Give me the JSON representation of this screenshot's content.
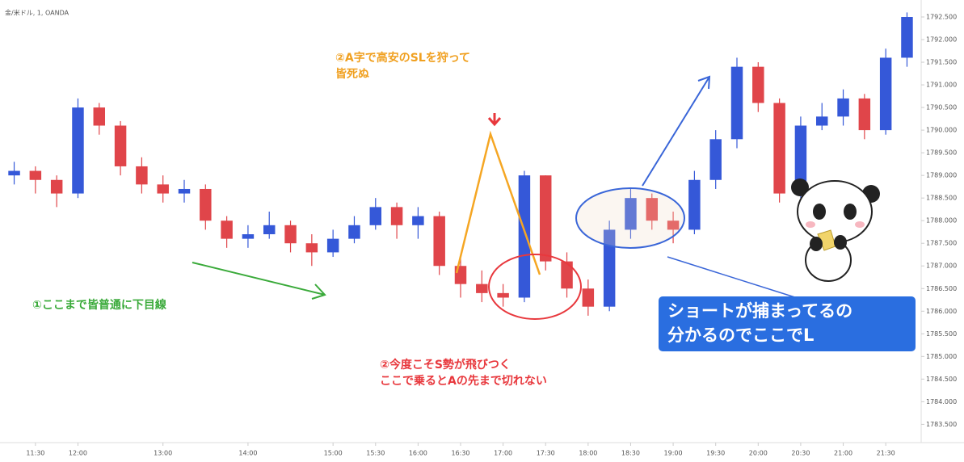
{
  "chart_data": {
    "type": "candlestick",
    "header": "金/米ドル, 1, OANDA",
    "x": [
      "11:15",
      "11:30",
      "11:45",
      "12:00",
      "12:15",
      "12:30",
      "12:45",
      "13:00",
      "13:15",
      "13:30",
      "13:45",
      "14:00",
      "14:15",
      "14:30",
      "14:45",
      "15:00",
      "15:15",
      "15:30",
      "15:45",
      "16:00",
      "16:15",
      "16:30",
      "16:45",
      "17:00",
      "17:15",
      "17:30",
      "17:45",
      "18:00",
      "18:15",
      "18:30",
      "18:45",
      "19:00",
      "19:15",
      "19:30",
      "19:45",
      "20:00",
      "20:15",
      "20:30",
      "20:45",
      "21:00",
      "21:15",
      "21:30",
      "21:45"
    ],
    "open": [
      1789.0,
      1789.1,
      1788.9,
      1788.6,
      1790.5,
      1790.1,
      1789.2,
      1788.8,
      1788.6,
      1788.7,
      1788.0,
      1787.6,
      1787.7,
      1787.9,
      1787.5,
      1787.3,
      1787.6,
      1787.9,
      1788.3,
      1787.9,
      1788.1,
      1787.0,
      1786.6,
      1786.4,
      1786.3,
      1789.0,
      1787.1,
      1786.5,
      1786.1,
      1787.8,
      1788.5,
      1788.0,
      1787.8,
      1788.9,
      1789.8,
      1791.4,
      1790.6,
      1788.6,
      1790.1,
      1790.3,
      1790.7,
      1790.0,
      1791.6
    ],
    "high": [
      1789.3,
      1789.2,
      1789.0,
      1790.7,
      1790.6,
      1790.2,
      1789.4,
      1789.0,
      1788.9,
      1788.8,
      1788.1,
      1787.9,
      1788.2,
      1788.0,
      1787.7,
      1787.8,
      1788.1,
      1788.5,
      1788.4,
      1788.3,
      1788.2,
      1787.2,
      1786.9,
      1786.6,
      1789.1,
      1789.0,
      1787.3,
      1786.7,
      1788.0,
      1788.7,
      1788.6,
      1788.2,
      1789.1,
      1790.0,
      1791.6,
      1791.5,
      1790.7,
      1790.3,
      1790.6,
      1790.9,
      1790.8,
      1791.8,
      1792.6
    ],
    "low": [
      1788.8,
      1788.6,
      1788.3,
      1788.5,
      1789.9,
      1789.0,
      1788.6,
      1788.4,
      1788.4,
      1787.8,
      1787.4,
      1787.4,
      1787.6,
      1787.3,
      1787.0,
      1787.2,
      1787.5,
      1787.8,
      1787.6,
      1787.6,
      1786.8,
      1786.3,
      1786.2,
      1786.1,
      1786.2,
      1786.9,
      1786.3,
      1785.9,
      1786.0,
      1787.6,
      1787.8,
      1787.5,
      1787.7,
      1788.7,
      1789.6,
      1790.4,
      1788.4,
      1788.5,
      1790.0,
      1790.1,
      1789.8,
      1789.9,
      1791.4
    ],
    "close": [
      1789.1,
      1788.9,
      1788.6,
      1790.5,
      1790.1,
      1789.2,
      1788.8,
      1788.6,
      1788.7,
      1788.0,
      1787.6,
      1787.7,
      1787.9,
      1787.5,
      1787.3,
      1787.6,
      1787.9,
      1788.3,
      1787.9,
      1788.1,
      1787.0,
      1786.6,
      1786.4,
      1786.3,
      1789.0,
      1787.1,
      1786.5,
      1786.1,
      1787.8,
      1788.5,
      1788.0,
      1787.8,
      1788.9,
      1789.8,
      1791.4,
      1790.6,
      1788.6,
      1790.1,
      1790.3,
      1790.7,
      1790.0,
      1791.6,
      1792.5
    ],
    "up_color": "#3558d8",
    "down_color": "#e0454a",
    "xlim": [
      "11:05",
      "21:55"
    ],
    "xticks": [
      "11:30",
      "12:00",
      "13:00",
      "14:00",
      "15:00",
      "15:30",
      "16:00",
      "16:30",
      "17:00",
      "17:30",
      "18:00",
      "18:30",
      "19:00",
      "19:30",
      "20:00",
      "20:30",
      "21:00",
      "21:30"
    ],
    "ylim": [
      1783.15,
      1792.75
    ],
    "yticks": [
      {
        "value": 1783.5,
        "label": "1783.500"
      },
      {
        "value": 1784,
        "label": "1784.000"
      },
      {
        "value": 1784.5,
        "label": "1784.500"
      },
      {
        "value": 1785,
        "label": "1785.000"
      },
      {
        "value": 1785.5,
        "label": "1785.500"
      },
      {
        "value": 1786,
        "label": "1786.000"
      },
      {
        "value": 1786.5,
        "label": "1786.500"
      },
      {
        "value": 1787,
        "label": "1787.000"
      },
      {
        "value": 1787.5,
        "label": "1787.500"
      },
      {
        "value": 1788,
        "label": "1788.000"
      },
      {
        "value": 1788.5,
        "label": "1788.500"
      },
      {
        "value": 1789,
        "label": "1789.000"
      },
      {
        "value": 1789.5,
        "label": "1789.500"
      },
      {
        "value": 1790,
        "label": "1790.000"
      },
      {
        "value": 1790.5,
        "label": "1790.500"
      },
      {
        "value": 1791,
        "label": "1791.000"
      },
      {
        "value": 1791.5,
        "label": "1791.500"
      },
      {
        "value": 1792,
        "label": "1792.000"
      },
      {
        "value": 1792.5,
        "label": "1792.500"
      }
    ],
    "annotations": [
      {
        "lines": [
          "②A字で高安のSLを狩って",
          "皆死ぬ"
        ],
        "color": "#f0a020"
      },
      {
        "lines": [
          "①ここまで皆普通に下目線"
        ],
        "color": "#3aaa3a"
      },
      {
        "lines": [
          "②今度こそS勢が飛びつく",
          "ここで乗るとAの先まで切れない"
        ],
        "color": "#e8383d"
      },
      {
        "lines": [
          "ショートが捕まってるの",
          "分かるのでここでL"
        ],
        "color": "#ffffff"
      }
    ]
  }
}
